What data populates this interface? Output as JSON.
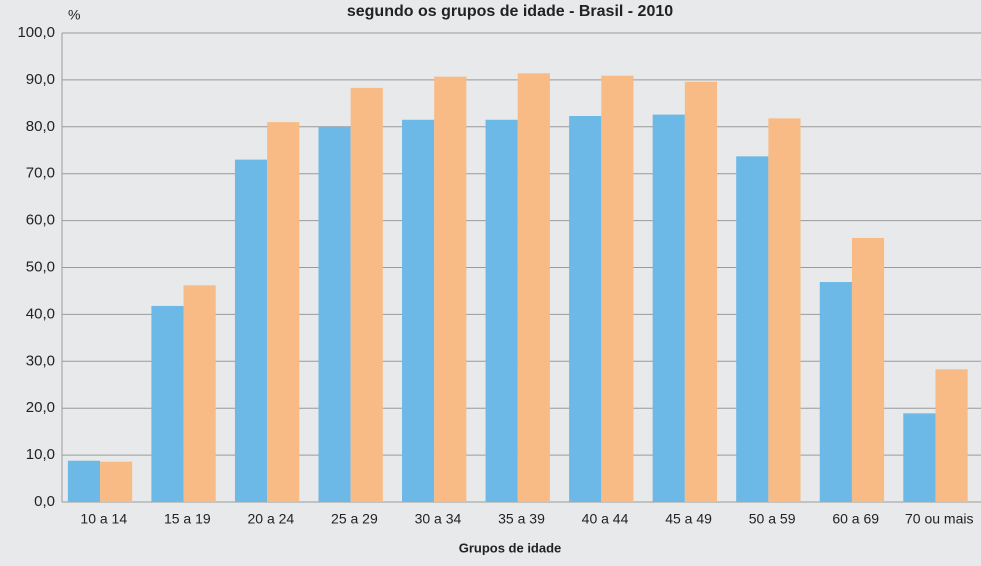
{
  "chart_data": {
    "type": "bar",
    "title": "segundo os grupos de idade - Brasil - 2010",
    "y_label": "%",
    "x_label": "Grupos de idade",
    "categories": [
      "10 a 14",
      "15 a 19",
      "20 a 24",
      "25 a 29",
      "30 a 34",
      "35 a 39",
      "40 a 44",
      "45 a 49",
      "50 a 59",
      "60 a 69",
      "70 ou mais"
    ],
    "series": [
      {
        "color": "#6cb8e6",
        "values": [
          8.8,
          41.8,
          73.0,
          80.0,
          81.5,
          81.5,
          82.3,
          82.6,
          73.7,
          46.9,
          18.9
        ]
      },
      {
        "color": "#f8bb85",
        "values": [
          8.6,
          46.2,
          81.0,
          88.3,
          90.7,
          91.4,
          90.9,
          89.6,
          81.8,
          56.3,
          28.3
        ]
      }
    ],
    "ylim": [
      0,
      100
    ],
    "yticks": [
      {
        "value": 0,
        "label": "0,0"
      },
      {
        "value": 10,
        "label": "10,0"
      },
      {
        "value": 20,
        "label": "20,0"
      },
      {
        "value": 30,
        "label": "30,0"
      },
      {
        "value": 40,
        "label": "40,0"
      },
      {
        "value": 50,
        "label": "50,0"
      },
      {
        "value": 60,
        "label": "60,0"
      },
      {
        "value": 70,
        "label": "70,0"
      },
      {
        "value": 80,
        "label": "80,0"
      },
      {
        "value": 90,
        "label": "90,0"
      },
      {
        "value": 100,
        "label": "100,0"
      }
    ],
    "grid": true
  }
}
